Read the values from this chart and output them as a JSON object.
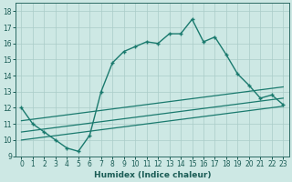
{
  "xlabel": "Humidex (Indice chaleur)",
  "bg_color": "#cde8e4",
  "grid_color": "#aaccc8",
  "line_color": "#1a7a6e",
  "xlim": [
    -0.5,
    23.5
  ],
  "ylim": [
    9,
    18.5
  ],
  "xticks": [
    0,
    1,
    2,
    3,
    4,
    5,
    6,
    7,
    8,
    9,
    10,
    11,
    12,
    13,
    14,
    15,
    16,
    17,
    18,
    19,
    20,
    21,
    22,
    23
  ],
  "yticks": [
    9,
    10,
    11,
    12,
    13,
    14,
    15,
    16,
    17,
    18
  ],
  "line1_x": [
    0,
    1,
    2,
    3,
    4,
    5,
    6,
    7,
    8,
    9,
    10,
    11,
    12,
    13,
    14,
    15,
    16,
    17,
    18,
    19,
    20,
    21,
    22,
    23
  ],
  "line1_y": [
    12,
    11,
    10.5,
    10,
    9.5,
    9.3,
    10.3,
    13,
    14.8,
    15.5,
    15.8,
    16.1,
    16,
    16.6,
    16.6,
    17.5,
    16.1,
    16.4,
    15.3,
    14.1,
    13.4,
    12.6,
    12.8,
    12.2
  ],
  "line2_x": [
    0,
    23
  ],
  "line2_y": [
    10.0,
    12.1
  ],
  "line3_x": [
    0,
    23
  ],
  "line3_y": [
    10.5,
    12.6
  ],
  "line4_x": [
    0,
    23
  ],
  "line4_y": [
    11.2,
    13.3
  ],
  "tick_fontsize": 5.5,
  "xlabel_fontsize": 6.5
}
